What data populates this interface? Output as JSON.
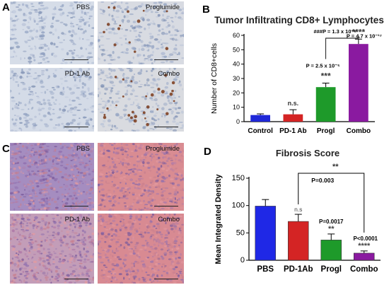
{
  "panels": {
    "a": {
      "letter": "A",
      "images": [
        {
          "label": "PBS",
          "tint": "#d6dde8"
        },
        {
          "label": "Proglumide",
          "tint": "#d8dbe2"
        },
        {
          "label": "PD-1 Ab",
          "tint": "#d4dbe7"
        },
        {
          "label": "Combo",
          "tint": "#d9dbe0"
        }
      ]
    },
    "b": {
      "letter": "B"
    },
    "c": {
      "letter": "C",
      "images": [
        {
          "label": "PBS",
          "tint": "#a58dc0"
        },
        {
          "label": "Proglumide",
          "tint": "#d98c92"
        },
        {
          "label": "PD-1 Ab",
          "tint": "#c39db8"
        },
        {
          "label": "Combo",
          "tint": "#d88a92"
        }
      ]
    },
    "d": {
      "letter": "D"
    }
  },
  "chart_data": [
    {
      "type": "bar",
      "title": "Tumor Infiltrating CD8+ Lymphocytes",
      "ylabel": "Number of CD8+cells",
      "xlabel": "",
      "categories": [
        "Control",
        "PD-1 Ab",
        "Progl",
        "Combo"
      ],
      "values": [
        4.6,
        5.1,
        24.0,
        54.0
      ],
      "errors": [
        0.8,
        3.2,
        2.8,
        3.4
      ],
      "colors": [
        "#1f28d8",
        "#d42424",
        "#1e9a2a",
        "#8a1aa0"
      ],
      "ylim": [
        0,
        60
      ],
      "yticks": [
        0,
        10,
        20,
        30,
        40,
        50,
        60
      ],
      "grid": false,
      "annotations": {
        "above_bars": [
          "",
          "n.s.",
          "***",
          "****"
        ],
        "pvalue_progl": "P = 2.5 x 10⁻⁵",
        "pvalue_combo": "P = 4.7 x 10⁻¹⁷",
        "bracket_label": "###P = 1.3 x 10⁻⁸"
      }
    },
    {
      "type": "bar",
      "title": "Fibrosis Score",
      "ylabel": "Mean Integrated Density",
      "xlabel": "",
      "categories": [
        "PBS",
        "PD-1Ab",
        "Progl",
        "Combo"
      ],
      "values": [
        99,
        71,
        37,
        13
      ],
      "errors": [
        12,
        13,
        11,
        4
      ],
      "colors": [
        "#1f28e6",
        "#d42424",
        "#1e9a2a",
        "#8a1aa0"
      ],
      "ylim": [
        0,
        150
      ],
      "yticks": [
        0,
        50,
        100,
        150
      ],
      "grid": false,
      "annotations": {
        "above_bars": [
          "",
          "n.s",
          "**",
          "****"
        ],
        "pvalue_pd1": "",
        "pvalue_progl": "P=0.0017",
        "pvalue_combo": "P<0.0001",
        "bracket_stars": "**",
        "bracket_label": "P=0.003"
      }
    }
  ]
}
